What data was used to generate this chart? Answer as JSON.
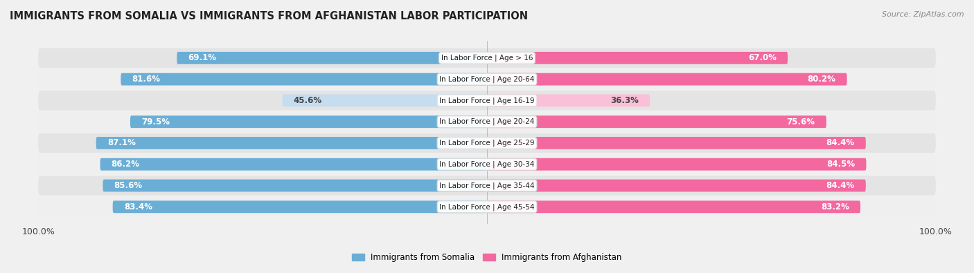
{
  "title": "IMMIGRANTS FROM SOMALIA VS IMMIGRANTS FROM AFGHANISTAN LABOR PARTICIPATION",
  "source": "Source: ZipAtlas.com",
  "categories": [
    "In Labor Force | Age > 16",
    "In Labor Force | Age 20-64",
    "In Labor Force | Age 16-19",
    "In Labor Force | Age 20-24",
    "In Labor Force | Age 25-29",
    "In Labor Force | Age 30-34",
    "In Labor Force | Age 35-44",
    "In Labor Force | Age 45-54"
  ],
  "somalia_values": [
    69.1,
    81.6,
    45.6,
    79.5,
    87.1,
    86.2,
    85.6,
    83.4
  ],
  "afghanistan_values": [
    67.0,
    80.2,
    36.3,
    75.6,
    84.4,
    84.5,
    84.4,
    83.2
  ],
  "somalia_color_strong": "#6aaed6",
  "somalia_color_light": "#c6ddf0",
  "afghanistan_color_strong": "#f468a0",
  "afghanistan_color_light": "#f9c0d8",
  "bar_height": 0.58,
  "max_value": 100.0,
  "background_color": "#f0f0f0",
  "row_bg_even": "#e8e8e8",
  "row_bg_odd": "#f5f5f5",
  "label_fontsize": 8.5,
  "category_fontsize": 7.5,
  "title_fontsize": 10.5,
  "source_fontsize": 8,
  "legend_fontsize": 8.5,
  "strong_threshold": 60,
  "footer_label": "100.0%"
}
